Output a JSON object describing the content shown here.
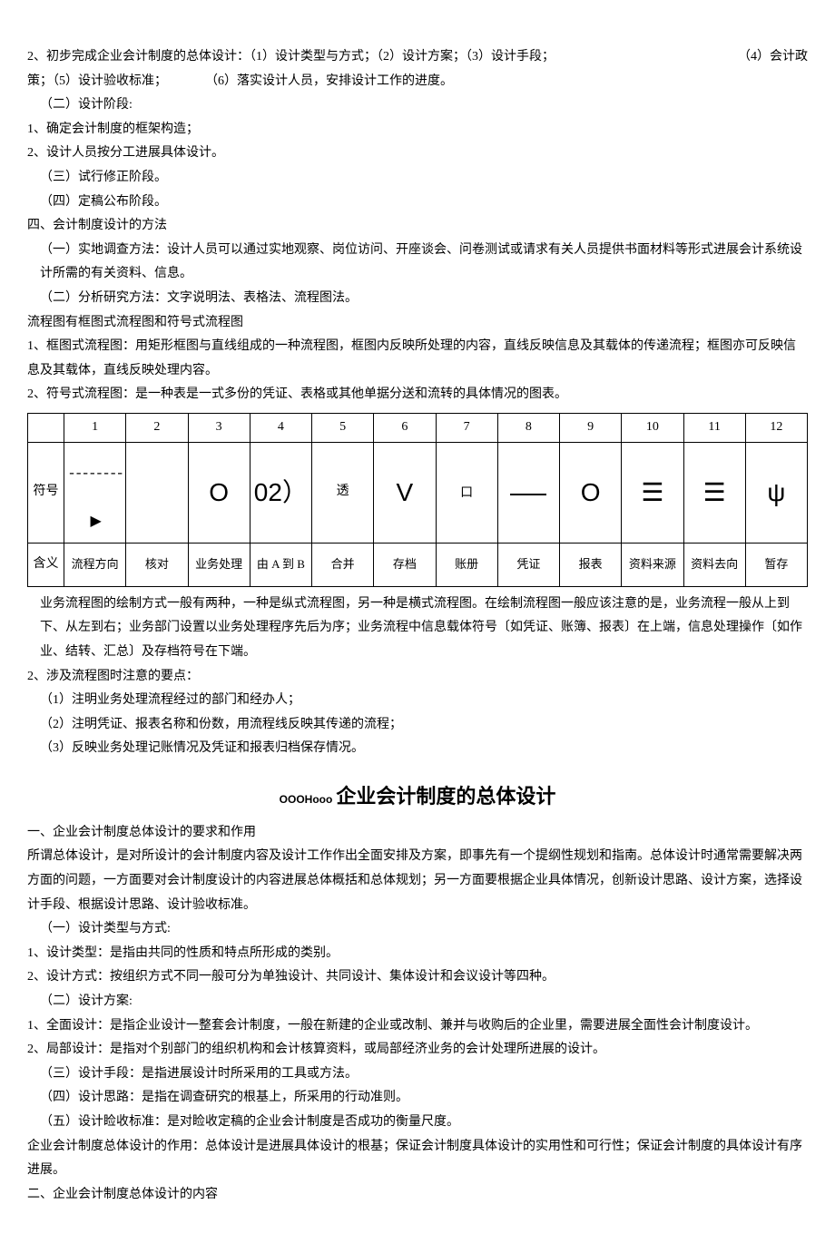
{
  "top": {
    "line1_left": "2、初步完成企业会计制度的总体设计：（1）设计类型与方式；（2）设计方案；（3）设计手段；",
    "line1_right": "（4）会计政",
    "line2": "策；（5）设计验收标准；　　　　（6）落实设计人员，安排设计工作的进度。",
    "line3": "（二）设计阶段:",
    "line4": "1、确定会计制度的框架构造；",
    "line5": "2、设计人员按分工进展具体设计。",
    "line6": "（三）试行修正阶段。",
    "line7": "（四）定稿公布阶段。",
    "line8": "四、会计制度设计的方法",
    "line9": "（一）实地调查方法：设计人员可以通过实地观察、岗位访问、开座谈会、问卷测试或请求有关人员提供书面材料等形式进展会计系统设计所需的有关资料、信息。",
    "line10": "（二）分析研究方法：文字说明法、表格法、流程图法。",
    "line11": "流程图有框图式流程图和符号式流程图",
    "line12": "1、框图式流程图：用矩形框图与直线组成的一种流程图，框图内反映所处理的内容，直线反映信息及其载体的传递流程；框图亦可反映信息及其载体，直线反映处理内容。",
    "line13": "2、符号式流程图：是一种表是一式多份的凭证、表格或其他单据分送和流转的具体情况的图表。"
  },
  "table": {
    "row_labels": [
      "符号",
      "含义"
    ],
    "cols": [
      "1",
      "2",
      "3",
      "4",
      "5",
      "6",
      "7",
      "8",
      "9",
      "10",
      "11",
      "12"
    ],
    "symbols": {
      "c1": "--------▶",
      "c2": "",
      "c3": "O",
      "c4": "02）",
      "c5": "透",
      "c6": "V",
      "c7": "口",
      "c8": "——",
      "c9": "O",
      "c10": "☰",
      "c11": "☰",
      "c12": "ψ"
    },
    "meanings": [
      "流程方向",
      "核对",
      "业务处理",
      "由 A 到 B",
      "合并",
      "存档",
      "账册",
      "凭证",
      "报表",
      "资料来源",
      "资料去向",
      "暂存"
    ]
  },
  "mid": {
    "p1": "业务流程图的绘制方式一般有两种，一种是纵式流程图，另一种是横式流程图。在绘制流程图一般应该注意的是，业务流程一般从上到下、从左到右；业务部门设置以业务处理程序先后为序；业务流程中信息载体符号〔如凭证、账簿、报表〕在上端，信息处理操作〔如作业、结转、汇总〕及存档符号在下端。",
    "p2": "2、涉及流程图时注意的要点：",
    "p3": "（1）注明业务处理流程经过的部门和经办人；",
    "p4": "（2）注明凭证、报表名称和份数，用流程线反映其传递的流程；",
    "p5": "（3）反映业务处理记账情况及凭证和报表归档保存情况。"
  },
  "heading2": {
    "prefix": "OOOHooo",
    "text": "企业会计制度的总体设计"
  },
  "sec2": {
    "l1": "一、企业会计制度总体设计的要求和作用",
    "l2": "所谓总体设计，是对所设计的会计制度内容及设计工作作出全面安排及方案，即事先有一个提纲性规划和指南。总体设计时通常需要解决两方面的问题，一方面要对会计制度设计的内容进展总体概括和总体规划；另一方面要根据企业具体情况，创新设计思路、设计方案，选择设计手段、根据设计思路、设计验收标准。",
    "l3": "（一）设计类型与方式:",
    "l4": "1、设计类型：是指由共同的性质和特点所形成的类别。",
    "l5": "2、设计方式：按组织方式不同一般可分为单独设计、共同设计、集体设计和会议设计等四种。",
    "l6": "（二）设计方案:",
    "l7": "1、全面设计：是指企业设计一整套会计制度，一般在新建的企业或改制、兼并与收购后的企业里，需要进展全面性会计制度设计。",
    "l8": "2、局部设计：是指对个别部门的组织机构和会计核算资料，或局部经济业务的会计处理所进展的设计。",
    "l9": "（三）设计手段：是指进展设计时所采用的工具或方法。",
    "l10": "（四）设计思路：是指在调查研究的根基上，所采用的行动准则。",
    "l11": "（五）设计睑收标准：是对睑收定稿的企业会计制度是否成功的衡量尺度。",
    "l12": "企业会计制度总体设计的作用：总体设计是进展具体设计的根基；保证会计制度具体设计的实用性和可行性；保证会计制度的具体设计有序进展。",
    "l13": "二、企业会计制度总体设计的内容"
  }
}
